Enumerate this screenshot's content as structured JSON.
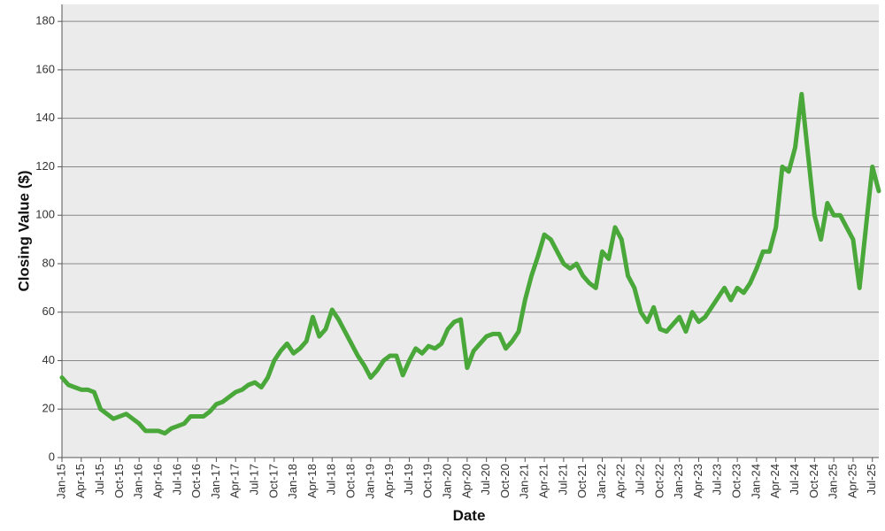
{
  "chart_data": {
    "type": "line",
    "x_label": "Date",
    "y_label": "Closing Value ($)",
    "x": [
      "2015-01",
      "2015-02",
      "2015-03",
      "2015-04",
      "2015-05",
      "2015-06",
      "2015-07",
      "2015-08",
      "2015-09",
      "2015-10",
      "2015-11",
      "2015-12",
      "2016-01",
      "2016-02",
      "2016-03",
      "2016-04",
      "2016-05",
      "2016-06",
      "2016-07",
      "2016-08",
      "2016-09",
      "2016-10",
      "2016-11",
      "2016-12",
      "2017-01",
      "2017-02",
      "2017-03",
      "2017-04",
      "2017-05",
      "2017-06",
      "2017-07",
      "2017-08",
      "2017-09",
      "2017-10",
      "2017-11",
      "2017-12",
      "2018-01",
      "2018-02",
      "2018-03",
      "2018-04",
      "2018-05",
      "2018-06",
      "2018-07",
      "2018-08",
      "2018-09",
      "2018-10",
      "2018-11",
      "2018-12",
      "2019-01",
      "2019-02",
      "2019-03",
      "2019-04",
      "2019-05",
      "2019-06",
      "2019-07",
      "2019-08",
      "2019-09",
      "2019-10",
      "2019-11",
      "2019-12",
      "2020-01",
      "2020-02",
      "2020-03",
      "2020-04",
      "2020-05",
      "2020-06",
      "2020-07",
      "2020-08",
      "2020-09",
      "2020-10",
      "2020-11",
      "2020-12",
      "2021-01",
      "2021-02",
      "2021-03",
      "2021-04",
      "2021-05",
      "2021-06",
      "2021-07",
      "2021-08",
      "2021-09",
      "2021-10",
      "2021-11",
      "2021-12",
      "2022-01",
      "2022-02",
      "2022-03",
      "2022-04",
      "2022-05",
      "2022-06",
      "2022-07",
      "2022-08",
      "2022-09",
      "2022-10",
      "2022-11",
      "2022-12",
      "2023-01",
      "2023-02",
      "2023-03",
      "2023-04",
      "2023-05",
      "2023-06",
      "2023-07",
      "2023-08",
      "2023-09",
      "2023-10",
      "2023-11",
      "2023-12",
      "2024-01",
      "2024-02",
      "2024-03",
      "2024-04",
      "2024-05",
      "2024-06",
      "2024-07",
      "2024-08",
      "2024-09",
      "2024-10",
      "2024-11",
      "2024-12",
      "2025-01",
      "2025-02",
      "2025-03",
      "2025-04",
      "2025-05",
      "2025-06",
      "2025-07",
      "2025-08"
    ],
    "series": [
      {
        "color": "#4aa83a",
        "values": [
          33,
          30,
          29,
          28,
          28,
          27,
          20,
          18,
          16,
          17,
          18,
          16,
          14,
          11,
          11,
          11,
          10,
          12,
          13,
          14,
          17,
          17,
          17,
          19,
          22,
          23,
          25,
          27,
          28,
          30,
          31,
          29,
          33,
          40,
          44,
          47,
          43,
          45,
          48,
          58,
          50,
          53,
          61,
          57,
          52,
          47,
          42,
          38,
          33,
          36,
          40,
          42,
          42,
          34,
          40,
          45,
          43,
          46,
          45,
          47,
          53,
          56,
          57,
          37,
          44,
          47,
          50,
          51,
          51,
          45,
          48,
          52,
          65,
          75,
          83,
          92,
          90,
          85,
          80,
          78,
          80,
          75,
          72,
          70,
          85,
          82,
          95,
          90,
          75,
          70,
          60,
          56,
          62,
          53,
          52,
          55,
          58,
          52,
          60,
          56,
          58,
          62,
          66,
          70,
          65,
          70,
          68,
          72,
          78,
          85,
          85,
          95,
          120,
          118,
          128,
          150,
          125,
          100,
          90,
          105,
          100,
          100,
          95,
          90,
          70,
          95,
          120,
          110
        ]
      }
    ],
    "xlim": [
      "2015-01",
      "2025-08"
    ],
    "xticks": [
      {
        "value": "2015-01",
        "label": "Jan-15"
      },
      {
        "value": "2015-04",
        "label": "Apr-15"
      },
      {
        "value": "2015-07",
        "label": "Jul-15"
      },
      {
        "value": "2015-10",
        "label": "Oct-15"
      },
      {
        "value": "2016-01",
        "label": "Jan-16"
      },
      {
        "value": "2016-04",
        "label": "Apr-16"
      },
      {
        "value": "2016-07",
        "label": "Jul-16"
      },
      {
        "value": "2016-10",
        "label": "Oct-16"
      },
      {
        "value": "2017-01",
        "label": "Jan-17"
      },
      {
        "value": "2017-04",
        "label": "Apr-17"
      },
      {
        "value": "2017-07",
        "label": "Jul-17"
      },
      {
        "value": "2017-10",
        "label": "Oct-17"
      },
      {
        "value": "2018-01",
        "label": "Jan-18"
      },
      {
        "value": "2018-04",
        "label": "Apr-18"
      },
      {
        "value": "2018-07",
        "label": "Jul-18"
      },
      {
        "value": "2018-10",
        "label": "Oct-18"
      },
      {
        "value": "2019-01",
        "label": "Jan-19"
      },
      {
        "value": "2019-04",
        "label": "Apr-19"
      },
      {
        "value": "2019-07",
        "label": "Jul-19"
      },
      {
        "value": "2019-10",
        "label": "Oct-19"
      },
      {
        "value": "2020-01",
        "label": "Jan-20"
      },
      {
        "value": "2020-04",
        "label": "Apr-20"
      },
      {
        "value": "2020-07",
        "label": "Jul-20"
      },
      {
        "value": "2020-10",
        "label": "Oct-20"
      },
      {
        "value": "2021-01",
        "label": "Jan-21"
      },
      {
        "value": "2021-04",
        "label": "Apr-21"
      },
      {
        "value": "2021-07",
        "label": "Jul-21"
      },
      {
        "value": "2021-10",
        "label": "Oct-21"
      },
      {
        "value": "2022-01",
        "label": "Jan-22"
      },
      {
        "value": "2022-04",
        "label": "Apr-22"
      },
      {
        "value": "2022-07",
        "label": "Jul-22"
      },
      {
        "value": "2022-10",
        "label": "Oct-22"
      },
      {
        "value": "2023-01",
        "label": "Jan-23"
      },
      {
        "value": "2023-04",
        "label": "Apr-23"
      },
      {
        "value": "2023-07",
        "label": "Jul-23"
      },
      {
        "value": "2023-10",
        "label": "Oct-23"
      },
      {
        "value": "2024-01",
        "label": "Jan-24"
      },
      {
        "value": "2024-04",
        "label": "Apr-24"
      },
      {
        "value": "2024-07",
        "label": "Jul-24"
      },
      {
        "value": "2024-10",
        "label": "Oct-24"
      },
      {
        "value": "2025-01",
        "label": "Jan-25"
      },
      {
        "value": "2025-04",
        "label": "Apr-25"
      },
      {
        "value": "2025-07",
        "label": "Jul-25"
      }
    ],
    "ylim": [
      0,
      187
    ],
    "yticks": [
      0,
      20,
      40,
      60,
      80,
      100,
      120,
      140,
      160,
      180
    ],
    "grid": true
  }
}
